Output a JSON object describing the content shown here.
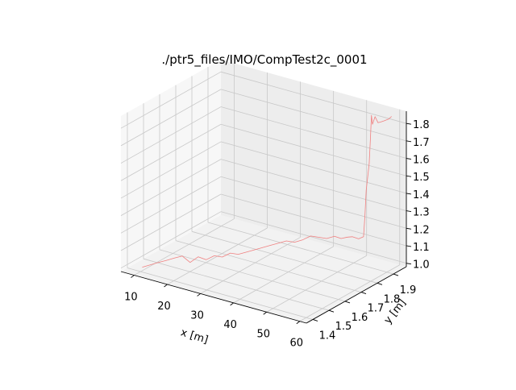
{
  "chart_data": {
    "type": "line",
    "projection": "3d",
    "title": "./ptr5_files/IMO/CompTest2c_0001",
    "xlabel": "x [m]",
    "ylabel": "y [m]",
    "zlabel": "",
    "xlim": [
      6,
      62
    ],
    "ylim": [
      1.36,
      1.98
    ],
    "zlim": [
      0.98,
      1.87
    ],
    "xticks": [
      "10",
      "20",
      "30",
      "40",
      "50",
      "60"
    ],
    "yticks": [
      "1.4",
      "1.5",
      "1.6",
      "1.7",
      "1.8",
      "1.9"
    ],
    "zticks": [
      "1.0",
      "1.1",
      "1.2",
      "1.3",
      "1.4",
      "1.5",
      "1.6",
      "1.7",
      "1.8"
    ],
    "grid": true,
    "series": [
      {
        "color": "#f08080",
        "x": [
          10.0,
          11.4,
          12.8,
          14.3,
          15.7,
          17.2,
          18.6,
          20.1,
          21.5,
          23.0,
          24.4,
          25.9,
          27.3,
          28.8,
          30.2,
          31.7,
          33.1,
          34.6,
          36.0,
          37.5,
          38.9,
          40.4,
          41.8,
          43.3,
          44.7,
          46.2,
          47.6,
          49.1,
          50.5,
          52.0,
          52.4,
          52.8,
          53.2,
          53.6,
          53.9,
          54.2,
          54.5,
          55.4,
          56.3,
          57.2,
          58.1,
          59.0
        ],
        "y": [
          1.41,
          1.43,
          1.45,
          1.47,
          1.49,
          1.51,
          1.53,
          1.55,
          1.57,
          1.59,
          1.61,
          1.63,
          1.65,
          1.67,
          1.69,
          1.71,
          1.73,
          1.75,
          1.77,
          1.79,
          1.81,
          1.83,
          1.85,
          1.87,
          1.89,
          1.9,
          1.91,
          1.91,
          1.92,
          1.92,
          1.92,
          1.92,
          1.93,
          1.93,
          1.93,
          1.93,
          1.94,
          1.94,
          1.94,
          1.94,
          1.95,
          1.95
        ],
        "z": [
          1.0,
          1.01,
          1.02,
          1.03,
          1.04,
          1.05,
          1.01,
          1.04,
          1.02,
          1.04,
          1.03,
          1.05,
          1.04,
          1.05,
          1.06,
          1.07,
          1.08,
          1.09,
          1.1,
          1.09,
          1.1,
          1.12,
          1.11,
          1.1,
          1.11,
          1.1,
          1.11,
          1.12,
          1.11,
          1.13,
          1.25,
          1.4,
          1.55,
          1.7,
          1.83,
          1.78,
          1.82,
          1.79,
          1.8,
          1.81,
          1.82,
          1.84
        ]
      }
    ]
  }
}
